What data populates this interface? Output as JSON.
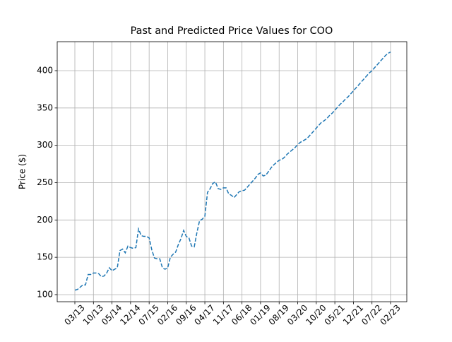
{
  "chart_data": {
    "type": "line",
    "title": "Past and Predicted Price Values for COO",
    "ylabel": "Price ($)",
    "categories": [
      "03/13",
      null,
      null,
      null,
      null,
      null,
      null,
      "10/13",
      null,
      null,
      null,
      null,
      null,
      null,
      "05/14",
      null,
      null,
      null,
      null,
      null,
      null,
      "12/14",
      null,
      null,
      null,
      null,
      null,
      null,
      "07/15",
      null,
      null,
      null,
      null,
      null,
      null,
      "02/16",
      null,
      null,
      null,
      null,
      null,
      null,
      "09/16",
      null,
      null,
      null,
      null,
      null,
      null,
      "04/17",
      null,
      null,
      null,
      null,
      null,
      null,
      "11/17",
      null,
      null,
      null,
      null,
      null,
      null,
      "06/18",
      null,
      null,
      null,
      null,
      null,
      null,
      "01/19",
      null,
      null,
      null,
      null,
      null,
      null,
      "08/19",
      null,
      null,
      null,
      null,
      null,
      null,
      "03/20",
      null,
      null,
      null,
      null,
      null,
      null,
      "10/20",
      null,
      null,
      null,
      null,
      null,
      null,
      "05/21",
      null,
      null,
      null,
      null,
      null,
      null,
      "12/21",
      null,
      null,
      null,
      null,
      null,
      null,
      "07/22",
      null,
      null,
      null,
      null,
      null,
      null,
      "02/23"
    ],
    "series": [
      {
        "color": "#1f77b4",
        "values": [
          106,
          107,
          110,
          113,
          113,
          127,
          127,
          129,
          129,
          128,
          124,
          125,
          129,
          136,
          132,
          134,
          136,
          159,
          161,
          156,
          165,
          163,
          162,
          163,
          188,
          179,
          178,
          178,
          176,
          160,
          149,
          148,
          148,
          136,
          134,
          136,
          150,
          154,
          157,
          167,
          175,
          186,
          178,
          176,
          165,
          164,
          183,
          199,
          201,
          205,
          237,
          242,
          249,
          251,
          242,
          241,
          243,
          243,
          235,
          233,
          230,
          234,
          238,
          239,
          240,
          244,
          248,
          252,
          256,
          261,
          263,
          259,
          260,
          265,
          270,
          274,
          277,
          280,
          281,
          284,
          288,
          291,
          294,
          297,
          301,
          304,
          306,
          308,
          311,
          315,
          319,
          323,
          327,
          331,
          333,
          336,
          340,
          343,
          347,
          351,
          355,
          358,
          362,
          365,
          369,
          373,
          377,
          381,
          385,
          389,
          393,
          397,
          400,
          404,
          408,
          412,
          416,
          420,
          423,
          425
        ]
      }
    ],
    "ylim": [
      90.5,
      438.8
    ],
    "yticks": [
      100,
      150,
      200,
      250,
      300,
      350,
      400
    ],
    "grid": true
  }
}
